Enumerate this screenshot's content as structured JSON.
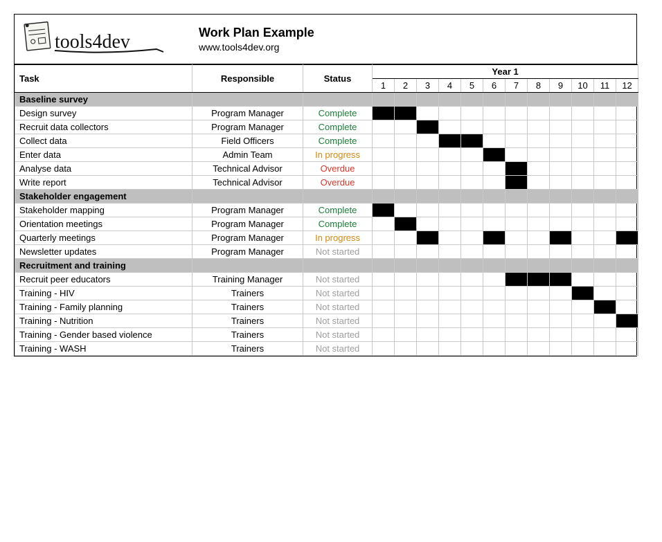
{
  "header": {
    "logo_text": "tools4dev",
    "title": "Work Plan Example",
    "subtitle": "www.tools4dev.org"
  },
  "columns": {
    "task": "Task",
    "responsible": "Responsible",
    "status": "Status",
    "year": "Year 1",
    "months": [
      "1",
      "2",
      "3",
      "4",
      "5",
      "6",
      "7",
      "8",
      "9",
      "10",
      "11",
      "12"
    ]
  },
  "status_colors": {
    "Complete": "#1a7f37",
    "In progress": "#d68910",
    "Overdue": "#d9362b",
    "Not started": "#9e9e9e"
  },
  "gantt_fill_color": "#000000",
  "section_bg": "#bfbfbf",
  "sections": [
    {
      "name": "Baseline survey",
      "rows": [
        {
          "task": "Design survey",
          "responsible": "Program Manager",
          "status": "Complete",
          "months": [
            1,
            2
          ]
        },
        {
          "task": "Recruit data collectors",
          "responsible": "Program Manager",
          "status": "Complete",
          "months": [
            3
          ]
        },
        {
          "task": "Collect data",
          "responsible": "Field Officers",
          "status": "Complete",
          "months": [
            4,
            5
          ]
        },
        {
          "task": "Enter data",
          "responsible": "Admin Team",
          "status": "In progress",
          "months": [
            6
          ]
        },
        {
          "task": "Analyse data",
          "responsible": "Technical Advisor",
          "status": "Overdue",
          "months": [
            7
          ]
        },
        {
          "task": "Write report",
          "responsible": "Technical Advisor",
          "status": "Overdue",
          "months": [
            7
          ]
        }
      ]
    },
    {
      "name": "Stakeholder engagement",
      "rows": [
        {
          "task": "Stakeholder mapping",
          "responsible": "Program Manager",
          "status": "Complete",
          "months": [
            1
          ]
        },
        {
          "task": "Orientation meetings",
          "responsible": "Program Manager",
          "status": "Complete",
          "months": [
            2
          ]
        },
        {
          "task": "Quarterly meetings",
          "responsible": "Program Manager",
          "status": "In progress",
          "months": [
            3,
            6,
            9,
            12
          ]
        },
        {
          "task": "Newsletter updates",
          "responsible": "Program Manager",
          "status": "Not started",
          "months": []
        }
      ]
    },
    {
      "name": "Recruitment and training",
      "rows": [
        {
          "task": "Recruit peer educators",
          "responsible": "Training Manager",
          "status": "Not started",
          "months": [
            7,
            8,
            9
          ]
        },
        {
          "task": "Training - HIV",
          "responsible": "Trainers",
          "status": "Not started",
          "months": [
            10
          ]
        },
        {
          "task": "Training - Family planning",
          "responsible": "Trainers",
          "status": "Not started",
          "months": [
            11
          ]
        },
        {
          "task": "Training - Nutrition",
          "responsible": "Trainers",
          "status": "Not started",
          "months": [
            12
          ]
        },
        {
          "task": "Training - Gender based violence",
          "responsible": "Trainers",
          "status": "Not started",
          "months": []
        },
        {
          "task": "Training - WASH",
          "responsible": "Trainers",
          "status": "Not started",
          "months": []
        }
      ]
    }
  ]
}
